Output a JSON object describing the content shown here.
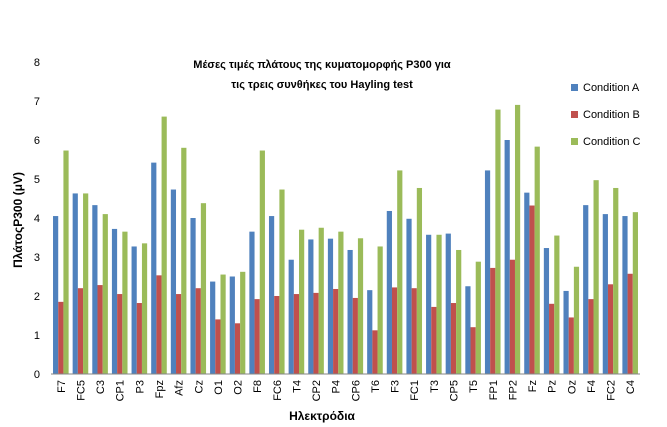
{
  "chart_data": {
    "type": "bar",
    "title_lines": [
      "Μέσες τιμές πλάτους της κυματομορφής P300 για",
      "τις τρεις συνθήκες του Hayling test"
    ],
    "xlabel": "Ηλεκτρόδια",
    "ylabel": "ΠλάτοςP300 (μV)",
    "ylim": [
      0,
      8
    ],
    "yticks": [
      "0",
      "1",
      "2",
      "3",
      "4",
      "5",
      "6",
      "7",
      "8"
    ],
    "grid": false,
    "legend_position": "right",
    "categories": [
      "F7",
      "FC5",
      "C3",
      "CP1",
      "P3",
      "Fpz",
      "Afz",
      "Cz",
      "O1",
      "O2",
      "F8",
      "FC6",
      "T4",
      "CP2",
      "P4",
      "CP6",
      "T6",
      "F3",
      "FC1",
      "T3",
      "CP5",
      "T5",
      "FP1",
      "FP2",
      "Fz",
      "Pz",
      "Oz",
      "F4",
      "FC2",
      "C4"
    ],
    "series": [
      {
        "name": "Condition A",
        "color": "#4F81BD",
        "values": [
          4.05,
          4.63,
          4.33,
          3.72,
          3.27,
          5.42,
          4.73,
          4.0,
          2.37,
          2.5,
          3.65,
          4.05,
          2.93,
          3.45,
          3.47,
          3.18,
          2.15,
          4.18,
          3.98,
          3.57,
          3.6,
          2.25,
          5.22,
          6.0,
          4.65,
          3.23,
          2.13,
          4.33,
          4.1,
          4.05
        ]
      },
      {
        "name": "Condition B",
        "color": "#C0504D",
        "values": [
          1.85,
          2.2,
          2.28,
          2.05,
          1.82,
          2.53,
          2.05,
          2.2,
          1.4,
          1.3,
          1.92,
          2.0,
          2.05,
          2.08,
          2.18,
          1.95,
          1.12,
          2.22,
          2.2,
          1.72,
          1.82,
          1.2,
          2.72,
          2.93,
          4.32,
          1.8,
          1.45,
          1.92,
          2.3,
          2.57
        ]
      },
      {
        "name": "Condition C",
        "color": "#9BBB59",
        "values": [
          5.73,
          4.63,
          4.1,
          3.65,
          3.35,
          6.6,
          5.8,
          4.38,
          2.55,
          2.62,
          5.73,
          4.73,
          3.7,
          3.75,
          3.65,
          3.48,
          3.27,
          5.22,
          4.77,
          3.57,
          3.18,
          2.88,
          6.78,
          6.9,
          5.83,
          3.55,
          2.75,
          4.97,
          4.77,
          4.15
        ]
      }
    ]
  }
}
